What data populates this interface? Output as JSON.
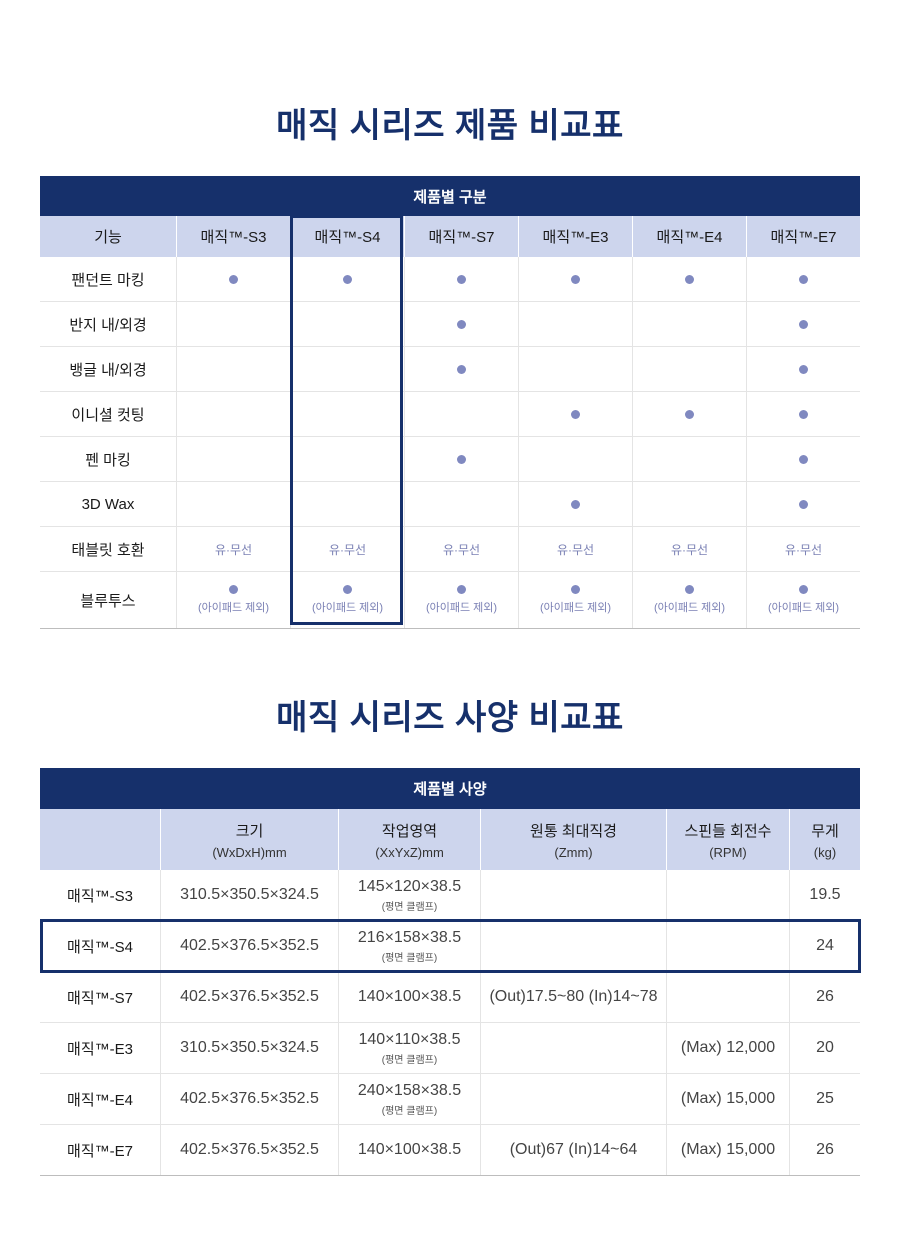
{
  "feature_section": {
    "title": "매직 시리즈 제품 비교표",
    "banner": "제품별 구분",
    "header": [
      "기능",
      "매직™-S3",
      "매직™-S4",
      "매직™-S7",
      "매직™-E3",
      "매직™-E4",
      "매직™-E7"
    ],
    "highlighted_model": "매직™-S4",
    "rows": [
      {
        "label": "팬던트 마킹",
        "cells": [
          "dot",
          "dot",
          "dot",
          "dot",
          "dot",
          "dot"
        ]
      },
      {
        "label": "반지 내/외경",
        "cells": [
          "",
          "",
          "dot",
          "",
          "",
          "dot"
        ]
      },
      {
        "label": "뱅글 내/외경",
        "cells": [
          "",
          "",
          "dot",
          "",
          "",
          "dot"
        ]
      },
      {
        "label": "이니셜 컷팅",
        "cells": [
          "",
          "",
          "",
          "dot",
          "dot",
          "dot"
        ]
      },
      {
        "label": "펜 마킹",
        "cells": [
          "",
          "",
          "dot",
          "",
          "",
          "dot"
        ]
      },
      {
        "label": "3D Wax",
        "cells": [
          "",
          "",
          "",
          "dot",
          "",
          "dot"
        ]
      },
      {
        "label": "태블릿 호환",
        "cells": [
          "유·무선",
          "유·무선",
          "유·무선",
          "유·무선",
          "유·무선",
          "유·무선"
        ]
      },
      {
        "label": "블루투스",
        "cells": [
          "dot",
          "dot",
          "dot",
          "dot",
          "dot",
          "dot"
        ],
        "note": "(아이패드 제외)"
      }
    ],
    "colors": {
      "banner": "#16306b",
      "header_bg": "#cdd5ed",
      "dot": "#8089c0"
    }
  },
  "spec_section": {
    "title": "매직 시리즈 사양 비교표",
    "banner": "제품별 사양",
    "header": [
      {
        "main": "",
        "sub": ""
      },
      {
        "main": "크기",
        "sub": "(WxDxH)mm"
      },
      {
        "main": "작업영역",
        "sub": "(XxYxZ)mm"
      },
      {
        "main": "원통 최대직경",
        "sub": "(Zmm)"
      },
      {
        "main": "스핀들 회전수",
        "sub": "(RPM)"
      },
      {
        "main": "무게",
        "sub": "(kg)"
      }
    ],
    "highlighted_model": "매직™-S4",
    "rows": [
      {
        "model": "매직™-S3",
        "size": "310.5×350.5×324.5",
        "area": "145×120×38.5",
        "area_note": "(평면 클램프)",
        "cylinder": "",
        "rpm": "",
        "weight": "19.5"
      },
      {
        "model": "매직™-S4",
        "size": "402.5×376.5×352.5",
        "area": "216×158×38.5",
        "area_note": "(평면 클램프)",
        "cylinder": "",
        "rpm": "",
        "weight": "24"
      },
      {
        "model": "매직™-S7",
        "size": "402.5×376.5×352.5",
        "area": "140×100×38.5",
        "area_note": "",
        "cylinder": "(Out)17.5~80 (In)14~78",
        "rpm": "",
        "weight": "26"
      },
      {
        "model": "매직™-E3",
        "size": "310.5×350.5×324.5",
        "area": "140×110×38.5",
        "area_note": "(평면 클램프)",
        "cylinder": "",
        "rpm": "(Max) 12,000",
        "weight": "20"
      },
      {
        "model": "매직™-E4",
        "size": "402.5×376.5×352.5",
        "area": "240×158×38.5",
        "area_note": "(평면 클램프)",
        "cylinder": "",
        "rpm": "(Max) 15,000",
        "weight": "25"
      },
      {
        "model": "매직™-E7",
        "size": "402.5×376.5×352.5",
        "area": "140×100×38.5",
        "area_note": "",
        "cylinder": "(Out)67 (In)14~64",
        "rpm": "(Max) 15,000",
        "weight": "26"
      }
    ]
  }
}
